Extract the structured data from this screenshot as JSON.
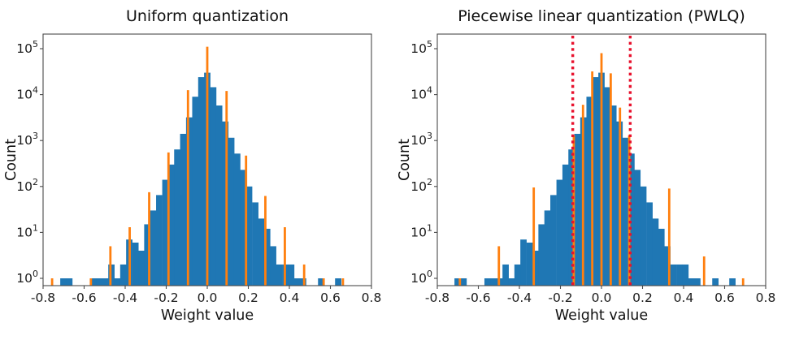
{
  "figure": {
    "background": "#ffffff"
  },
  "colors": {
    "histogram": "#1f77b4",
    "quant_levels": "#ff7f0e",
    "breakpoint": "#e8112d",
    "axis": "#4a4a4a",
    "tick_text": "#1c1c1c"
  },
  "chart_data": [
    {
      "type": "bar",
      "title": "Uniform quantization",
      "xlabel": "Weight value",
      "ylabel": "Count",
      "yscale": "log",
      "grid": false,
      "legend": "none",
      "xlim": [
        -0.8,
        0.8
      ],
      "ylim": [
        1,
        100000
      ],
      "x_ticks": [
        "-0.8",
        "-0.6",
        "-0.4",
        "-0.2",
        "0.0",
        "0.2",
        "0.4",
        "0.6",
        "0.8"
      ],
      "x_tick_values": [
        -0.8,
        -0.6,
        -0.4,
        -0.2,
        0.0,
        0.2,
        0.4,
        0.6,
        0.8
      ],
      "y_tick_exponents": [
        0,
        1,
        2,
        3,
        4,
        5
      ],
      "bin_width": 0.0292,
      "series": [
        {
          "name": "weight histogram",
          "kind": "bars",
          "bins": [
            [
              -0.701,
              1
            ],
            [
              -0.672,
              1
            ],
            [
              -0.555,
              1
            ],
            [
              -0.526,
              1
            ],
            [
              -0.496,
              1
            ],
            [
              -0.467,
              2
            ],
            [
              -0.438,
              1
            ],
            [
              -0.409,
              2
            ],
            [
              -0.38,
              7
            ],
            [
              -0.35,
              6
            ],
            [
              -0.321,
              4
            ],
            [
              -0.292,
              15
            ],
            [
              -0.263,
              30
            ],
            [
              -0.234,
              65
            ],
            [
              -0.204,
              140
            ],
            [
              -0.175,
              300
            ],
            [
              -0.146,
              640
            ],
            [
              -0.117,
              1400
            ],
            [
              -0.088,
              3200
            ],
            [
              -0.058,
              9000
            ],
            [
              -0.029,
              24000
            ],
            [
              0,
              30000
            ],
            [
              0.029,
              14500
            ],
            [
              0.058,
              5800
            ],
            [
              0.088,
              2600
            ],
            [
              0.117,
              1150
            ],
            [
              0.146,
              520
            ],
            [
              0.175,
              230
            ],
            [
              0.204,
              100
            ],
            [
              0.234,
              45
            ],
            [
              0.263,
              20
            ],
            [
              0.292,
              12
            ],
            [
              0.321,
              5
            ],
            [
              0.35,
              2
            ],
            [
              0.38,
              2
            ],
            [
              0.409,
              2
            ],
            [
              0.438,
              1
            ],
            [
              0.467,
              1
            ],
            [
              0.555,
              1
            ],
            [
              0.638,
              1
            ]
          ]
        },
        {
          "name": "uniform quantization levels",
          "kind": "stems",
          "step": 0.0945,
          "stems": [
            [
              -0.756,
              1
            ],
            [
              -0.567,
              1
            ],
            [
              -0.472,
              5
            ],
            [
              -0.378,
              13
            ],
            [
              -0.283,
              75
            ],
            [
              -0.189,
              550
            ],
            [
              -0.094,
              12500
            ],
            [
              0,
              110000
            ],
            [
              0.094,
              12000
            ],
            [
              0.189,
              470
            ],
            [
              0.283,
              62
            ],
            [
              0.378,
              13
            ],
            [
              0.472,
              2
            ],
            [
              0.567,
              1
            ],
            [
              0.661,
              1
            ]
          ]
        }
      ]
    },
    {
      "type": "bar",
      "title": "Piecewise linear quantization (PWLQ)",
      "xlabel": "Weight value",
      "ylabel": "Count",
      "yscale": "log",
      "grid": false,
      "legend": "none",
      "xlim": [
        -0.8,
        0.8
      ],
      "ylim": [
        1,
        100000
      ],
      "x_ticks": [
        "-0.8",
        "-0.6",
        "-0.4",
        "-0.2",
        "0.0",
        "0.2",
        "0.4",
        "0.6",
        "0.8"
      ],
      "x_tick_values": [
        -0.8,
        -0.6,
        -0.4,
        -0.2,
        0.0,
        0.2,
        0.4,
        0.6,
        0.8
      ],
      "y_tick_exponents": [
        0,
        1,
        2,
        3,
        4,
        5
      ],
      "bin_width": 0.0292,
      "series": [
        {
          "name": "weight histogram",
          "kind": "bars",
          "bins": [
            [
              -0.701,
              1
            ],
            [
              -0.672,
              1
            ],
            [
              -0.555,
              1
            ],
            [
              -0.526,
              1
            ],
            [
              -0.496,
              1
            ],
            [
              -0.467,
              2
            ],
            [
              -0.438,
              1
            ],
            [
              -0.409,
              2
            ],
            [
              -0.38,
              7
            ],
            [
              -0.35,
              6
            ],
            [
              -0.321,
              4
            ],
            [
              -0.292,
              15
            ],
            [
              -0.263,
              30
            ],
            [
              -0.234,
              65
            ],
            [
              -0.204,
              140
            ],
            [
              -0.175,
              300
            ],
            [
              -0.146,
              640
            ],
            [
              -0.117,
              1400
            ],
            [
              -0.088,
              3200
            ],
            [
              -0.058,
              9000
            ],
            [
              -0.029,
              24000
            ],
            [
              0,
              30000
            ],
            [
              0.029,
              14500
            ],
            [
              0.058,
              5800
            ],
            [
              0.088,
              2600
            ],
            [
              0.117,
              1150
            ],
            [
              0.146,
              520
            ],
            [
              0.175,
              230
            ],
            [
              0.204,
              100
            ],
            [
              0.234,
              45
            ],
            [
              0.263,
              20
            ],
            [
              0.292,
              12
            ],
            [
              0.321,
              5
            ],
            [
              0.35,
              2
            ],
            [
              0.38,
              2
            ],
            [
              0.409,
              2
            ],
            [
              0.438,
              1
            ],
            [
              0.467,
              1
            ],
            [
              0.555,
              1
            ],
            [
              0.638,
              1
            ]
          ]
        },
        {
          "name": "PWLQ quantization levels",
          "kind": "stems",
          "inner_step": 0.045,
          "outer_step": 0.18,
          "stems": [
            [
              -0.69,
              1
            ],
            [
              -0.5,
              5
            ],
            [
              -0.33,
              95
            ],
            [
              -0.135,
              1300
            ],
            [
              -0.09,
              6000
            ],
            [
              -0.045,
              32000
            ],
            [
              0,
              80000
            ],
            [
              0.045,
              29000
            ],
            [
              0.09,
              5200
            ],
            [
              0.135,
              1300
            ],
            [
              0.33,
              90
            ],
            [
              0.5,
              3
            ],
            [
              0.69,
              1
            ]
          ]
        }
      ],
      "breakpoints": {
        "x": [
          -0.14,
          0.14
        ],
        "style": "dotted"
      }
    }
  ]
}
